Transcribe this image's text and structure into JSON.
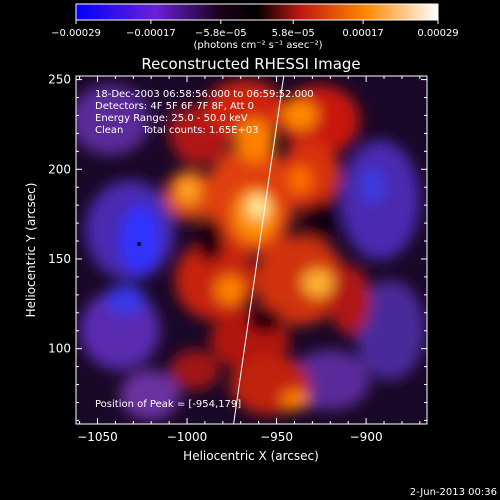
{
  "chart_data": {
    "type": "heatmap",
    "title": "Reconstructed RHESSI Image",
    "xlabel": "Heliocentric X (arcsec)",
    "ylabel": "Heliocentric Y (arcsec)",
    "xlim": [
      -1062,
      -866
    ],
    "ylim": [
      58,
      252
    ],
    "xticks": [
      -1050,
      -1000,
      -950,
      -900
    ],
    "xtick_labels": [
      "−1050",
      "−1000",
      "−950",
      "−900"
    ],
    "yticks": [
      100,
      150,
      200,
      250
    ],
    "ytick_labels": [
      "100",
      "150",
      "200",
      "250"
    ],
    "colorbar": {
      "range": [
        -0.00029,
        0.00029
      ],
      "ticks": [
        -0.00029,
        -0.00017,
        -5.8e-05,
        5.8e-05,
        0.00017,
        0.00029
      ],
      "tick_labels": [
        "−0.00029",
        "−0.00017",
        "−5.8e−05",
        "5.8e−05",
        "0.00017",
        "0.00029"
      ],
      "unit_label": "(photons cm⁻² s⁻¹ asec⁻²)",
      "colors": [
        "#0000ff",
        "#7020d0",
        "#000000",
        "#d82010",
        "#ff9000",
        "#ffffff"
      ]
    },
    "annotations": [
      "18-Dec-2003 06:58:56.000 to 06:59:52.000",
      "Detectors: 4F 5F 6F 7F 8F, Att 0",
      "Energy Range: 25.0 - 50.0 keV",
      "Clean      Total counts: 1.65E+03"
    ],
    "peak_label": "Position of Peak = [-954,179]",
    "peak": [
      -954,
      179
    ],
    "limb_line": [
      [
        -974,
        58
      ],
      [
        -946,
        252
      ]
    ],
    "grid": false
  },
  "footer": {
    "date": "2-Jun-2013 00:36"
  }
}
